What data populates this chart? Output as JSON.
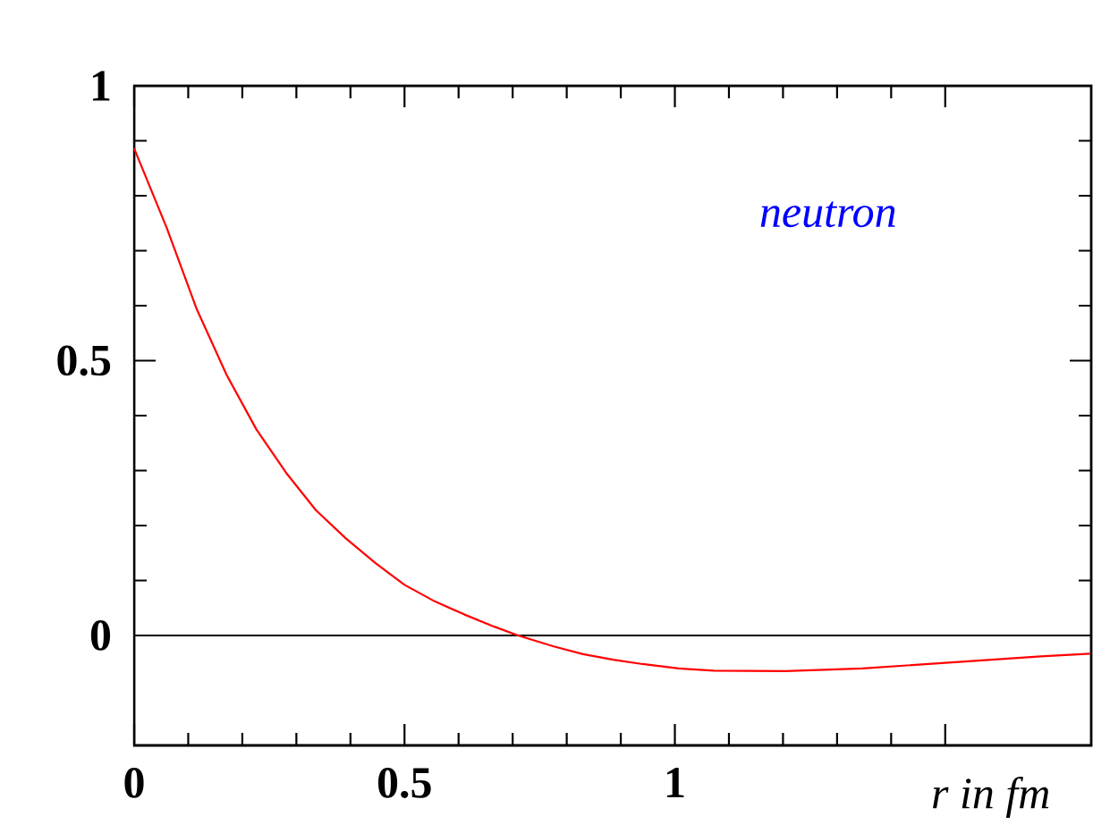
{
  "chart_data": {
    "type": "line",
    "xlabel": "r in fm",
    "annotations": [
      "neutron"
    ],
    "xlim": [
      0,
      1.77
    ],
    "ylim": [
      -0.2,
      1
    ],
    "xticks": [
      0,
      0.5,
      1,
      {
        "value": 1.5,
        "label": null
      }
    ],
    "yticks": [
      0,
      0.5,
      1
    ],
    "grid": false,
    "marker": "none",
    "line_style": "solid",
    "ref_lines": [
      {
        "axis": "y",
        "value": 0,
        "color": "#000000"
      }
    ],
    "series": [
      {
        "color": "#ff0000",
        "x": [
          0,
          0.06,
          0.116,
          0.171,
          0.226,
          0.281,
          0.336,
          0.391,
          0.446,
          0.5,
          0.556,
          0.611,
          0.666,
          0.71,
          0.776,
          0.83,
          0.886,
          0.94,
          1.007,
          1.072,
          1.204,
          1.347,
          1.512,
          1.677,
          1.768
        ],
        "values": [
          0.886,
          0.742,
          0.593,
          0.474,
          0.375,
          0.296,
          0.228,
          0.177,
          0.132,
          0.092,
          0.062,
          0.038,
          0.016,
          0,
          -0.02,
          -0.034,
          -0.044,
          -0.052,
          -0.06,
          -0.064,
          -0.065,
          -0.06,
          -0.049,
          -0.038,
          -0.033
        ]
      }
    ]
  }
}
